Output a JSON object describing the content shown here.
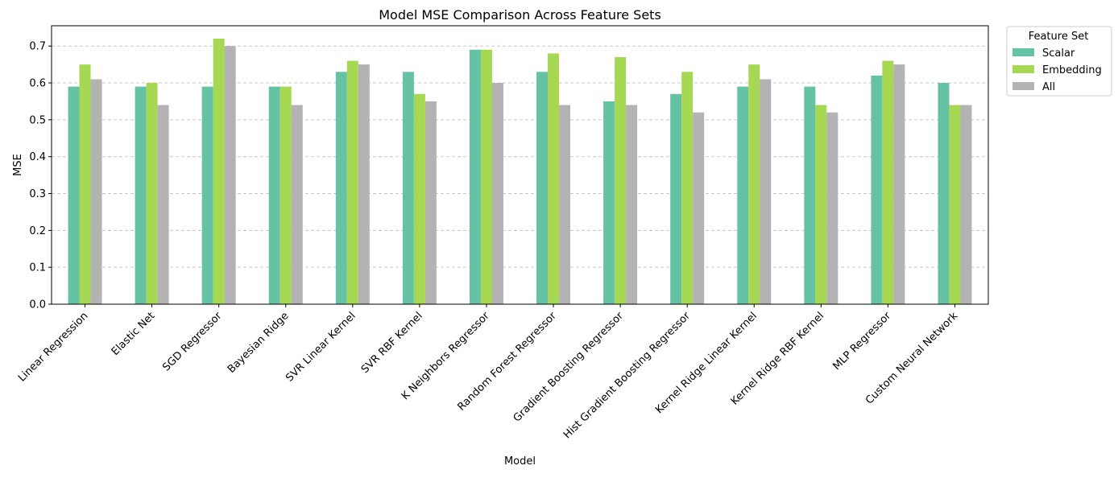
{
  "chart_data": {
    "type": "bar",
    "title": "Model MSE Comparison Across Feature Sets",
    "xlabel": "Model",
    "ylabel": "MSE",
    "ylim": [
      0,
      0.755
    ],
    "yticks": [
      "0.0",
      "0.1",
      "0.2",
      "0.3",
      "0.4",
      "0.5",
      "0.6",
      "0.7"
    ],
    "grid": "horizontal, dashed",
    "categories": [
      "Linear Regression",
      "Elastic Net",
      "SGD Regressor",
      "Bayesian Ridge",
      "SVR Linear Kernel",
      "SVR RBF Kernel",
      "K Neighbors Regressor",
      "Random Forest Regressor",
      "Gradient Boosting Regressor",
      "Hist Gradient Boosting Regressor",
      "Kernel Ridge Linear Kernel",
      "Kernel Ridge RBF Kernel",
      "MLP Regressor",
      "Custom Neural Network"
    ],
    "series": [
      {
        "name": "Scalar",
        "color": "#66c2a5",
        "values": [
          0.59,
          0.59,
          0.59,
          0.59,
          0.63,
          0.63,
          0.69,
          0.63,
          0.55,
          0.57,
          0.59,
          0.59,
          0.62,
          0.6
        ]
      },
      {
        "name": "Embedding",
        "color": "#a6d854",
        "values": [
          0.65,
          0.6,
          0.72,
          0.59,
          0.66,
          0.57,
          0.69,
          0.68,
          0.67,
          0.63,
          0.65,
          0.54,
          0.66,
          0.54
        ]
      },
      {
        "name": "All",
        "color": "#b3b3b3",
        "values": [
          0.61,
          0.54,
          0.7,
          0.54,
          0.65,
          0.55,
          0.6,
          0.54,
          0.54,
          0.52,
          0.61,
          0.52,
          0.65,
          0.54
        ]
      }
    ],
    "legend": {
      "title": "Feature Set",
      "placement": "outside top-right"
    }
  }
}
